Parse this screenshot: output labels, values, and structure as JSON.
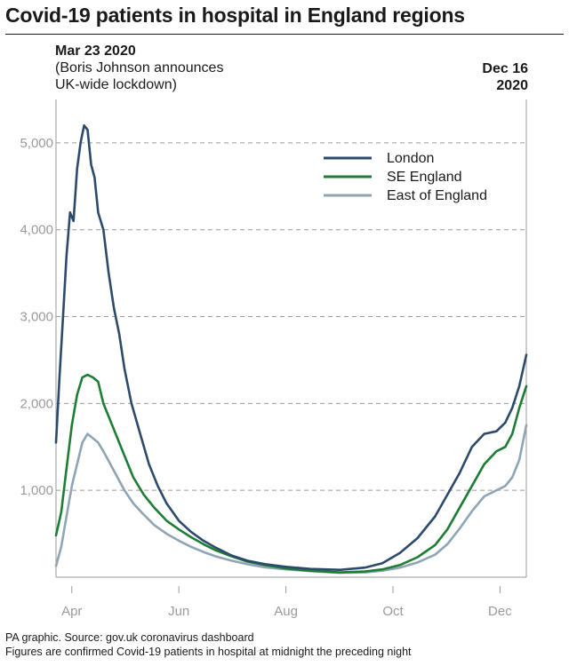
{
  "title": "Covid-19 patients in hospital in England regions",
  "annotations": {
    "start_date": "Mar 23 2020",
    "start_line2": "(Boris Johnson announces",
    "start_line3": "UK-wide lockdown)",
    "end_line1": "Dec 16",
    "end_line2": "2020"
  },
  "footer": {
    "source": "PA graphic. Source: gov.uk coronavirus dashboard",
    "note": "Figures are confirmed Covid-19 patients in hospital at midnight the preceding night"
  },
  "chart_data": {
    "type": "line",
    "x_start": "2020-03-23",
    "x_end": "2020-12-16",
    "ylim": [
      0,
      5500
    ],
    "yticks": [
      1000,
      2000,
      3000,
      4000,
      5000
    ],
    "ytick_labels": [
      "1,000",
      "2,000",
      "3,000",
      "4,000",
      "5,000"
    ],
    "xticks": [
      {
        "date": "2020-04-01",
        "label": "Apr"
      },
      {
        "date": "2020-06-01",
        "label": "Jun"
      },
      {
        "date": "2020-08-01",
        "label": "Aug"
      },
      {
        "date": "2020-10-01",
        "label": "Oct"
      },
      {
        "date": "2020-12-01",
        "label": "Dec"
      }
    ],
    "grid": "horizontal dashed",
    "legend_position": "top-right",
    "series": [
      {
        "name": "London",
        "color": "#2c4a6b",
        "points": [
          [
            "2020-03-23",
            1550
          ],
          [
            "2020-03-25",
            2300
          ],
          [
            "2020-03-27",
            3000
          ],
          [
            "2020-03-29",
            3700
          ],
          [
            "2020-03-31",
            4200
          ],
          [
            "2020-04-02",
            4100
          ],
          [
            "2020-04-04",
            4700
          ],
          [
            "2020-04-06",
            5000
          ],
          [
            "2020-04-08",
            5200
          ],
          [
            "2020-04-10",
            5150
          ],
          [
            "2020-04-12",
            4750
          ],
          [
            "2020-04-14",
            4600
          ],
          [
            "2020-04-16",
            4200
          ],
          [
            "2020-04-19",
            4000
          ],
          [
            "2020-04-22",
            3500
          ],
          [
            "2020-04-25",
            3100
          ],
          [
            "2020-04-28",
            2800
          ],
          [
            "2020-05-01",
            2400
          ],
          [
            "2020-05-05",
            2000
          ],
          [
            "2020-05-10",
            1650
          ],
          [
            "2020-05-15",
            1300
          ],
          [
            "2020-05-20",
            1050
          ],
          [
            "2020-05-25",
            850
          ],
          [
            "2020-06-01",
            650
          ],
          [
            "2020-06-08",
            520
          ],
          [
            "2020-06-15",
            420
          ],
          [
            "2020-06-22",
            340
          ],
          [
            "2020-07-01",
            250
          ],
          [
            "2020-07-10",
            190
          ],
          [
            "2020-07-20",
            150
          ],
          [
            "2020-08-01",
            120
          ],
          [
            "2020-08-15",
            95
          ],
          [
            "2020-09-01",
            85
          ],
          [
            "2020-09-15",
            110
          ],
          [
            "2020-09-25",
            160
          ],
          [
            "2020-10-05",
            280
          ],
          [
            "2020-10-15",
            450
          ],
          [
            "2020-10-25",
            700
          ],
          [
            "2020-11-01",
            950
          ],
          [
            "2020-11-08",
            1200
          ],
          [
            "2020-11-15",
            1500
          ],
          [
            "2020-11-22",
            1650
          ],
          [
            "2020-11-29",
            1680
          ],
          [
            "2020-12-04",
            1780
          ],
          [
            "2020-12-08",
            1950
          ],
          [
            "2020-12-12",
            2200
          ],
          [
            "2020-12-16",
            2560
          ]
        ]
      },
      {
        "name": "SE England",
        "color": "#1e7d35",
        "points": [
          [
            "2020-03-23",
            480
          ],
          [
            "2020-03-26",
            750
          ],
          [
            "2020-03-29",
            1250
          ],
          [
            "2020-04-01",
            1750
          ],
          [
            "2020-04-04",
            2100
          ],
          [
            "2020-04-07",
            2300
          ],
          [
            "2020-04-10",
            2330
          ],
          [
            "2020-04-13",
            2300
          ],
          [
            "2020-04-16",
            2250
          ],
          [
            "2020-04-19",
            2000
          ],
          [
            "2020-04-23",
            1800
          ],
          [
            "2020-04-27",
            1600
          ],
          [
            "2020-05-01",
            1400
          ],
          [
            "2020-05-06",
            1150
          ],
          [
            "2020-05-12",
            950
          ],
          [
            "2020-05-18",
            800
          ],
          [
            "2020-05-25",
            650
          ],
          [
            "2020-06-01",
            550
          ],
          [
            "2020-06-08",
            460
          ],
          [
            "2020-06-15",
            380
          ],
          [
            "2020-06-22",
            310
          ],
          [
            "2020-07-01",
            240
          ],
          [
            "2020-07-10",
            180
          ],
          [
            "2020-07-20",
            140
          ],
          [
            "2020-08-01",
            100
          ],
          [
            "2020-08-15",
            75
          ],
          [
            "2020-09-01",
            55
          ],
          [
            "2020-09-15",
            65
          ],
          [
            "2020-09-25",
            90
          ],
          [
            "2020-10-05",
            140
          ],
          [
            "2020-10-15",
            230
          ],
          [
            "2020-10-25",
            370
          ],
          [
            "2020-11-01",
            550
          ],
          [
            "2020-11-08",
            800
          ],
          [
            "2020-11-15",
            1050
          ],
          [
            "2020-11-22",
            1300
          ],
          [
            "2020-11-29",
            1450
          ],
          [
            "2020-12-04",
            1500
          ],
          [
            "2020-12-08",
            1650
          ],
          [
            "2020-12-12",
            1950
          ],
          [
            "2020-12-16",
            2200
          ]
        ]
      },
      {
        "name": "East of England",
        "color": "#8fa4b4",
        "points": [
          [
            "2020-03-23",
            130
          ],
          [
            "2020-03-26",
            350
          ],
          [
            "2020-03-29",
            700
          ],
          [
            "2020-04-01",
            1050
          ],
          [
            "2020-04-04",
            1300
          ],
          [
            "2020-04-07",
            1550
          ],
          [
            "2020-04-10",
            1650
          ],
          [
            "2020-04-13",
            1600
          ],
          [
            "2020-04-16",
            1550
          ],
          [
            "2020-04-19",
            1450
          ],
          [
            "2020-04-23",
            1300
          ],
          [
            "2020-04-27",
            1150
          ],
          [
            "2020-05-01",
            1000
          ],
          [
            "2020-05-06",
            850
          ],
          [
            "2020-05-12",
            720
          ],
          [
            "2020-05-18",
            600
          ],
          [
            "2020-05-25",
            500
          ],
          [
            "2020-06-01",
            420
          ],
          [
            "2020-06-08",
            350
          ],
          [
            "2020-06-15",
            290
          ],
          [
            "2020-06-22",
            240
          ],
          [
            "2020-07-01",
            190
          ],
          [
            "2020-07-10",
            150
          ],
          [
            "2020-07-20",
            115
          ],
          [
            "2020-08-01",
            90
          ],
          [
            "2020-08-15",
            70
          ],
          [
            "2020-09-01",
            50
          ],
          [
            "2020-09-15",
            55
          ],
          [
            "2020-09-25",
            75
          ],
          [
            "2020-10-05",
            110
          ],
          [
            "2020-10-15",
            170
          ],
          [
            "2020-10-25",
            260
          ],
          [
            "2020-11-01",
            380
          ],
          [
            "2020-11-08",
            560
          ],
          [
            "2020-11-15",
            760
          ],
          [
            "2020-11-22",
            930
          ],
          [
            "2020-11-29",
            1000
          ],
          [
            "2020-12-04",
            1050
          ],
          [
            "2020-12-08",
            1150
          ],
          [
            "2020-12-12",
            1350
          ],
          [
            "2020-12-16",
            1750
          ]
        ]
      }
    ]
  }
}
